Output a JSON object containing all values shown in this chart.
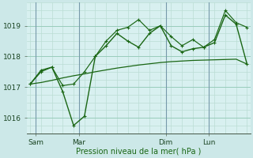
{
  "xlabel": "Pression niveau de la mer( hPa )",
  "background_color": "#cce8e8",
  "plot_bg_color": "#d8f0f0",
  "grid_color_major": "#99ccbb",
  "grid_color_minor": "#bbddd4",
  "line_color": "#1a6614",
  "vline_color": "#7799aa",
  "ylim": [
    1015.5,
    1019.75
  ],
  "xlim": [
    -0.3,
    20.3
  ],
  "xtick_labels": [
    "Sam",
    "Mar",
    "Dim",
    "Lun"
  ],
  "xtick_positions": [
    0.5,
    4.5,
    12.5,
    16.5
  ],
  "vline_positions": [
    0.5,
    4.5,
    12.5,
    16.5
  ],
  "ytick_values": [
    1016,
    1017,
    1018,
    1019
  ],
  "x": [
    0,
    1,
    2,
    3,
    4,
    5,
    6,
    7,
    8,
    9,
    10,
    11,
    12,
    13,
    14,
    15,
    16,
    17,
    18,
    19,
    20
  ],
  "y_main": [
    1017.1,
    1017.55,
    1017.65,
    1016.85,
    1015.75,
    1016.05,
    1018.0,
    1018.35,
    1018.75,
    1018.5,
    1018.3,
    1018.75,
    1019.0,
    1018.35,
    1018.15,
    1018.25,
    1018.3,
    1018.45,
    1019.35,
    1019.05,
    1017.75
  ],
  "y_upper": [
    1017.1,
    1017.5,
    1017.65,
    1017.05,
    1017.1,
    1017.5,
    1018.0,
    1018.5,
    1018.85,
    1018.95,
    1019.2,
    1018.85,
    1019.0,
    1018.65,
    1018.35,
    1018.55,
    1018.3,
    1018.55,
    1019.5,
    1019.1,
    1018.95
  ],
  "y_lower": [
    1017.1,
    1017.15,
    1017.22,
    1017.3,
    1017.37,
    1017.43,
    1017.5,
    1017.56,
    1017.62,
    1017.67,
    1017.72,
    1017.76,
    1017.8,
    1017.83,
    1017.85,
    1017.87,
    1017.88,
    1017.89,
    1017.9,
    1017.91,
    1017.75
  ]
}
